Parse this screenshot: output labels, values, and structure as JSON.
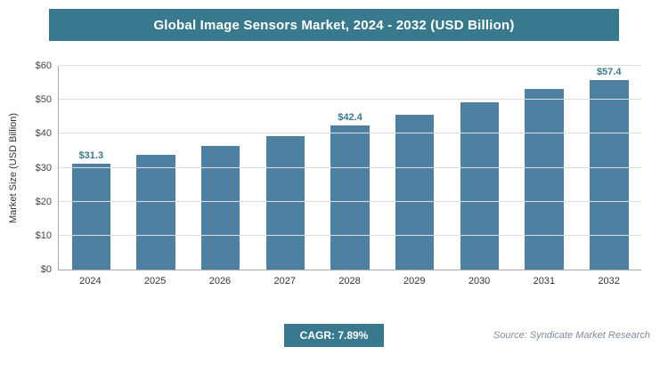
{
  "title": "Global Image Sensors Market, 2024 - 2032 (USD Billion)",
  "footer": {
    "cagr": "CAGR: 7.89%",
    "source": "Source: Syndicate Market Research"
  },
  "colors": {
    "accent": "#38798e",
    "bar": "#4e81a1",
    "bar-label": "#38798e",
    "grid": "#dddddd",
    "axis": "#aaaaaa",
    "source-text": "#7e8b97"
  },
  "chart_data": {
    "type": "bar",
    "title": "Global Image Sensors Market, 2024 - 2032 (USD Billion)",
    "categories": [
      "2024",
      "2025",
      "2026",
      "2027",
      "2028",
      "2029",
      "2030",
      "2031",
      "2032"
    ],
    "values": [
      31.3,
      33.7,
      36.4,
      39.2,
      42.4,
      45.7,
      49.3,
      53.2,
      57.4
    ],
    "value_labels": [
      "$31.3",
      "",
      "",
      "",
      "$42.4",
      "",
      "",
      "",
      "$57.4"
    ],
    "xlabel": "",
    "ylabel": "Market Size (USD Billion)",
    "ylim": [
      0,
      60
    ],
    "yticks": [
      {
        "value": 0,
        "label": "$0"
      },
      {
        "value": 10,
        "label": "$10"
      },
      {
        "value": 20,
        "label": "$20"
      },
      {
        "value": 30,
        "label": "$30"
      },
      {
        "value": 40,
        "label": "$40"
      },
      {
        "value": 50,
        "label": "$50"
      },
      {
        "value": 60,
        "label": "$60"
      }
    ],
    "grid": "horizontal",
    "legend": "none",
    "cagr": "7.89%"
  }
}
